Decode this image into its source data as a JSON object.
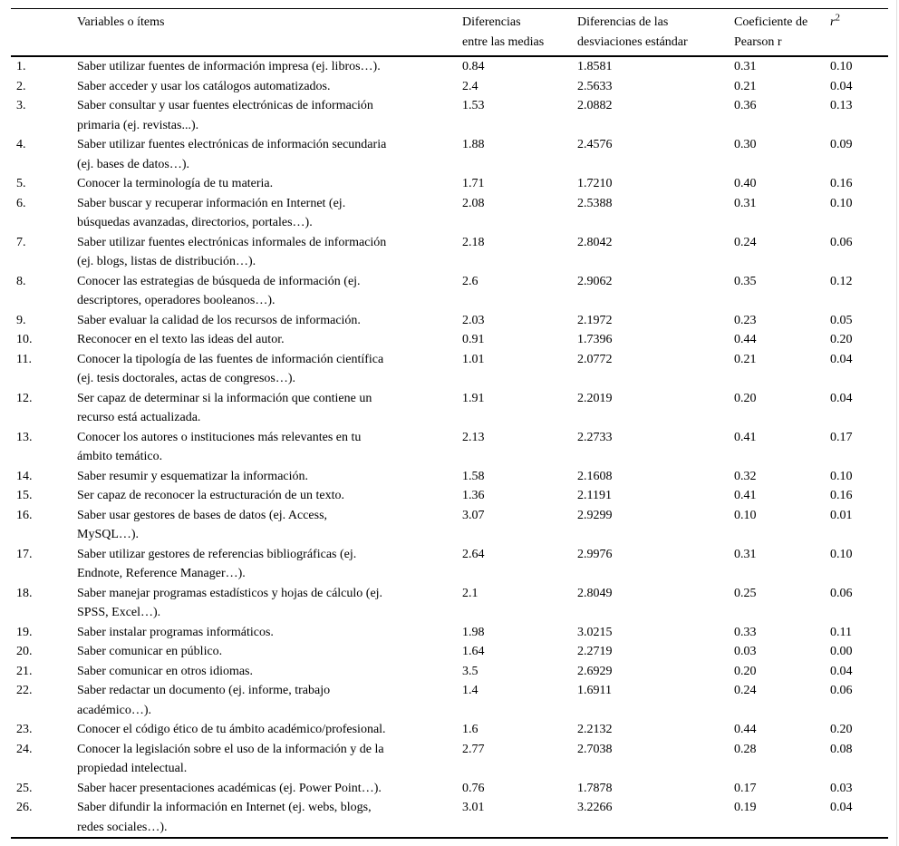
{
  "page": {
    "background": "#ffffff",
    "text_color": "#000000",
    "rule_color": "#000000"
  },
  "table": {
    "headers": {
      "item": "Variables o ítems",
      "diff_means": "Diferencias\nentre las medias",
      "diff_sd": "Diferencias de las\ndesviaciones estándar",
      "pearson": "Coeficiente de\nPearson r",
      "r2_base": "r",
      "r2_sup": "2"
    },
    "rows": [
      {
        "num": "1.",
        "item": "Saber utilizar fuentes de información impresa (ej. libros…).",
        "diff_means": "0.84",
        "diff_sd": "1.8581",
        "pearson": "0.31",
        "r2": "0.10"
      },
      {
        "num": "2.",
        "item": "Saber acceder y usar los catálogos automatizados.",
        "diff_means": "2.4",
        "diff_sd": "2.5633",
        "pearson": "0.21",
        "r2": "0.04"
      },
      {
        "num": "3.",
        "item": "Saber consultar y usar fuentes electrónicas de información\nprimaria (ej. revistas...).",
        "diff_means": "1.53",
        "diff_sd": "2.0882",
        "pearson": "0.36",
        "r2": "0.13"
      },
      {
        "num": "4.",
        "item": "Saber utilizar fuentes electrónicas de información secundaria\n(ej. bases de datos…).",
        "diff_means": "1.88",
        "diff_sd": "2.4576",
        "pearson": "0.30",
        "r2": "0.09"
      },
      {
        "num": "5.",
        "item": "Conocer la terminología de tu materia.",
        "diff_means": "1.71",
        "diff_sd": "1.7210",
        "pearson": "0.40",
        "r2": "0.16"
      },
      {
        "num": "6.",
        "item": "Saber buscar y recuperar información en Internet (ej.\nbúsquedas avanzadas, directorios, portales…).",
        "diff_means": "2.08",
        "diff_sd": "2.5388",
        "pearson": "0.31",
        "r2": "0.10"
      },
      {
        "num": "7.",
        "item": "Saber utilizar fuentes electrónicas informales de información\n(ej. blogs, listas de distribución…).",
        "diff_means": "2.18",
        "diff_sd": "2.8042",
        "pearson": "0.24",
        "r2": "0.06"
      },
      {
        "num": "8.",
        "item": "Conocer las estrategias de búsqueda de información (ej.\ndescriptores, operadores booleanos…).",
        "diff_means": "2.6",
        "diff_sd": "2.9062",
        "pearson": "0.35",
        "r2": "0.12"
      },
      {
        "num": "9.",
        "item": "Saber evaluar la calidad de los recursos de información.",
        "diff_means": "2.03",
        "diff_sd": "2.1972",
        "pearson": "0.23",
        "r2": "0.05"
      },
      {
        "num": "10.",
        "item": "Reconocer en el texto las ideas del autor.",
        "diff_means": "0.91",
        "diff_sd": "1.7396",
        "pearson": "0.44",
        "r2": "0.20"
      },
      {
        "num": "11.",
        "item": "Conocer la tipología de las fuentes de información científica\n(ej. tesis doctorales, actas de congresos…).",
        "diff_means": "1.01",
        "diff_sd": "2.0772",
        "pearson": "0.21",
        "r2": "0.04"
      },
      {
        "num": "12.",
        "item": "Ser capaz de determinar si la información que contiene un\nrecurso está actualizada.",
        "diff_means": "1.91",
        "diff_sd": "2.2019",
        "pearson": "0.20",
        "r2": "0.04"
      },
      {
        "num": "13.",
        "item": "Conocer los autores o instituciones más relevantes en tu\námbito temático.",
        "diff_means": "2.13",
        "diff_sd": "2.2733",
        "pearson": "0.41",
        "r2": "0.17"
      },
      {
        "num": "14.",
        "item": "Saber resumir y esquematizar la información.",
        "diff_means": "1.58",
        "diff_sd": "2.1608",
        "pearson": "0.32",
        "r2": "0.10"
      },
      {
        "num": "15.",
        "item": "Ser capaz de reconocer la estructuración de un texto.",
        "diff_means": "1.36",
        "diff_sd": "2.1191",
        "pearson": "0.41",
        "r2": "0.16"
      },
      {
        "num": "16.",
        "item": "Saber usar gestores de bases de datos (ej. Access,\nMySQL…).",
        "diff_means": "3.07",
        "diff_sd": "2.9299",
        "pearson": "0.10",
        "r2": "0.01"
      },
      {
        "num": "17.",
        "item": "Saber utilizar gestores de referencias bibliográficas (ej.\nEndnote, Reference Manager…).",
        "diff_means": "2.64",
        "diff_sd": "2.9976",
        "pearson": "0.31",
        "r2": "0.10"
      },
      {
        "num": "18.",
        "item": "Saber manejar programas estadísticos y hojas de cálculo (ej.\nSPSS, Excel…).",
        "diff_means": "2.1",
        "diff_sd": "2.8049",
        "pearson": "0.25",
        "r2": "0.06"
      },
      {
        "num": "19.",
        "item": "Saber instalar programas informáticos.",
        "diff_means": "1.98",
        "diff_sd": "3.0215",
        "pearson": "0.33",
        "r2": "0.11"
      },
      {
        "num": "20.",
        "item": "Saber comunicar en público.",
        "diff_means": "1.64",
        "diff_sd": "2.2719",
        "pearson": "0.03",
        "r2": "0.00"
      },
      {
        "num": "21.",
        "item": "Saber comunicar en otros idiomas.",
        "diff_means": "3.5",
        "diff_sd": "2.6929",
        "pearson": "0.20",
        "r2": "0.04"
      },
      {
        "num": "22.",
        "item": "Saber redactar un documento (ej. informe, trabajo\nacadémico…).",
        "diff_means": "1.4",
        "diff_sd": "1.6911",
        "pearson": "0.24",
        "r2": "0.06"
      },
      {
        "num": "23.",
        "item": "Conocer el código ético de tu ámbito académico/profesional.",
        "diff_means": "1.6",
        "diff_sd": "2.2132",
        "pearson": "0.44",
        "r2": "0.20"
      },
      {
        "num": "24.",
        "item": "Conocer la legislación sobre el uso de la información y de la\npropiedad intelectual.",
        "diff_means": "2.77",
        "diff_sd": "2.7038",
        "pearson": "0.28",
        "r2": "0.08"
      },
      {
        "num": "25.",
        "item": "Saber hacer presentaciones académicas (ej. Power Point…).",
        "diff_means": "0.76",
        "diff_sd": "1.7878",
        "pearson": "0.17",
        "r2": "0.03"
      },
      {
        "num": "26.",
        "item": "Saber difundir la información en Internet (ej. webs, blogs,\nredes sociales…).",
        "diff_means": "3.01",
        "diff_sd": "3.2266",
        "pearson": "0.19",
        "r2": "0.04"
      }
    ]
  }
}
